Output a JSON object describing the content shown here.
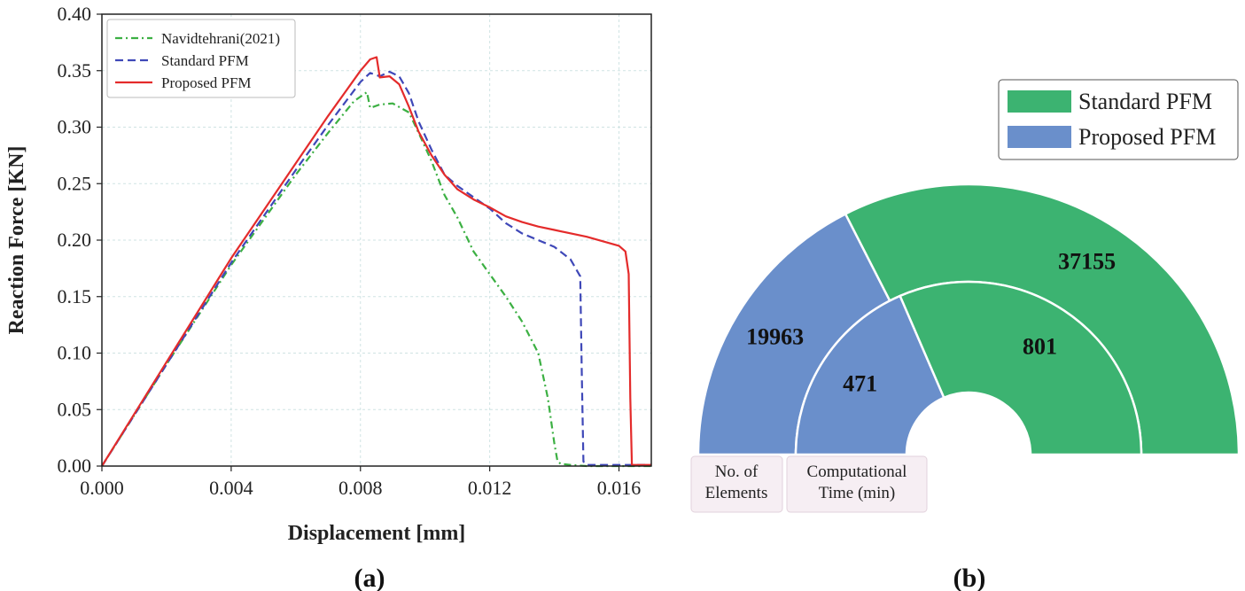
{
  "panel_a": {
    "label": "(a)",
    "chart_data": {
      "type": "line",
      "xlabel": "Displacement [mm]",
      "ylabel": "Reaction Force [KN]",
      "xlim": [
        0,
        0.017
      ],
      "ylim": [
        0,
        0.4
      ],
      "xticks": [
        0.0,
        0.004,
        0.008,
        0.012,
        0.016
      ],
      "xtick_labels": [
        "0.000",
        "0.004",
        "0.008",
        "0.012",
        "0.016"
      ],
      "yticks": [
        0.0,
        0.05,
        0.1,
        0.15,
        0.2,
        0.25,
        0.3,
        0.35,
        0.4
      ],
      "ytick_labels": [
        "0.00",
        "0.05",
        "0.10",
        "0.15",
        "0.20",
        "0.25",
        "0.30",
        "0.35",
        "0.40"
      ],
      "grid": true,
      "legend_position": "top-left",
      "series": [
        {
          "name": "Navidtehrani(2021)",
          "color": "#3cb043",
          "style": "dashdot",
          "x": [
            0,
            0.002,
            0.004,
            0.006,
            0.007,
            0.0078,
            0.0082,
            0.0083,
            0.0086,
            0.009,
            0.0095,
            0.0098,
            0.0102,
            0.0106,
            0.011,
            0.0115,
            0.012,
            0.0125,
            0.013,
            0.0135,
            0.0138,
            0.014,
            0.0141,
            0.0142,
            0.0145,
            0.015,
            0.016,
            0.017
          ],
          "y": [
            0,
            0.09,
            0.178,
            0.258,
            0.295,
            0.323,
            0.331,
            0.317,
            0.32,
            0.321,
            0.313,
            0.295,
            0.27,
            0.24,
            0.22,
            0.19,
            0.17,
            0.15,
            0.128,
            0.1,
            0.06,
            0.02,
            0.004,
            0.002,
            0.001,
            0.0,
            0.0,
            0.0
          ]
        },
        {
          "name": "Standard PFM",
          "color": "#3f48b8",
          "style": "dashed",
          "x": [
            0,
            0.002,
            0.004,
            0.006,
            0.007,
            0.008,
            0.0083,
            0.0086,
            0.0089,
            0.0092,
            0.0095,
            0.0098,
            0.0102,
            0.0106,
            0.011,
            0.0115,
            0.012,
            0.0125,
            0.013,
            0.0135,
            0.014,
            0.0145,
            0.0148,
            0.01485,
            0.0149,
            0.015,
            0.016,
            0.017
          ],
          "y": [
            0,
            0.09,
            0.18,
            0.262,
            0.302,
            0.34,
            0.348,
            0.345,
            0.349,
            0.345,
            0.33,
            0.305,
            0.28,
            0.258,
            0.248,
            0.238,
            0.228,
            0.215,
            0.206,
            0.2,
            0.194,
            0.183,
            0.168,
            0.08,
            0.004,
            0.001,
            0.001,
            0.001
          ]
        },
        {
          "name": "Proposed PFM",
          "color": "#e42b2b",
          "style": "solid",
          "x": [
            0,
            0.002,
            0.004,
            0.006,
            0.007,
            0.008,
            0.0083,
            0.0085,
            0.0086,
            0.0089,
            0.0092,
            0.0095,
            0.0098,
            0.0102,
            0.0106,
            0.011,
            0.0115,
            0.012,
            0.0125,
            0.013,
            0.0135,
            0.014,
            0.015,
            0.016,
            0.0162,
            0.0163,
            0.01635,
            0.0164,
            0.017
          ],
          "y": [
            0,
            0.092,
            0.184,
            0.268,
            0.31,
            0.35,
            0.36,
            0.362,
            0.344,
            0.345,
            0.338,
            0.318,
            0.296,
            0.275,
            0.258,
            0.245,
            0.236,
            0.229,
            0.221,
            0.216,
            0.212,
            0.209,
            0.203,
            0.195,
            0.19,
            0.17,
            0.06,
            0.001,
            0.001
          ]
        }
      ]
    }
  },
  "panel_b": {
    "label": "(b)",
    "chart_data": {
      "type": "pie",
      "subtype": "nested-semicircle-donut",
      "legend_position": "top-right",
      "categories": [
        "Proposed PFM",
        "Standard PFM"
      ],
      "colors": [
        "#6a8fcb",
        "#3cb371"
      ],
      "rings": [
        {
          "name": "No. of Elements",
          "values": [
            19963,
            37155
          ]
        },
        {
          "name": "Computational Time (min)",
          "values": [
            471,
            801
          ]
        }
      ]
    }
  }
}
